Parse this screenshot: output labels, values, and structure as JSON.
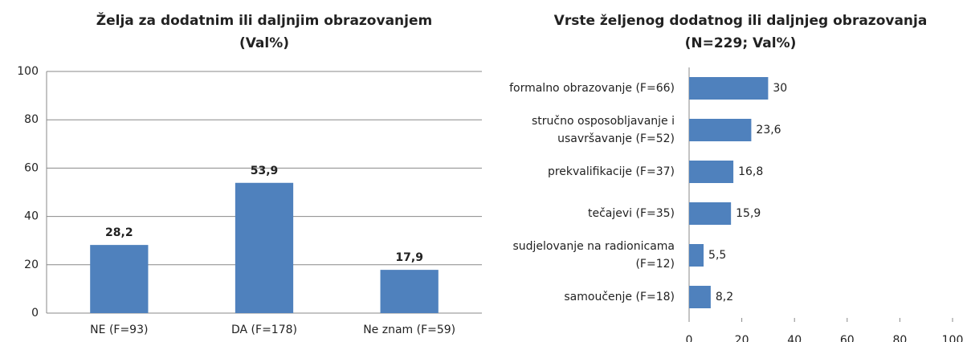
{
  "chart_data": [
    {
      "type": "bar",
      "title": [
        "Želja za dodatnim ili daljnjim obrazovanjem",
        "(Val%)"
      ],
      "categories": [
        "NE (F=93)",
        "DA (F=178)",
        "Ne znam (F=59)"
      ],
      "values": [
        28.2,
        53.9,
        17.9
      ],
      "value_labels": [
        "28,2",
        "53,9",
        "17,9"
      ],
      "color": "#4f81bd",
      "ylim": [
        0,
        100
      ],
      "yticks": [
        0,
        20,
        40,
        60,
        80,
        100
      ],
      "grid": true
    },
    {
      "type": "hbar",
      "title": [
        "Vrste željenog dodatnog ili daljnjeg obrazovanja",
        "(N=229; Val%)"
      ],
      "categories": [
        "formalno obrazovanje (F=66)",
        "stručno osposobljavanje i usavršavanje (F=52)",
        "prekvalifikacije (F=37)",
        "tečajevi (F=35)",
        "sudjelovanje na radionicama (F=12)",
        "samoučenje (F=18)"
      ],
      "values": [
        30,
        23.6,
        16.8,
        15.9,
        5.5,
        8.2
      ],
      "value_labels": [
        "30",
        "23,6",
        "16,8",
        "15,9",
        "5,5",
        "8,2"
      ],
      "color": "#4f81bd",
      "xlim": [
        0,
        100
      ],
      "xticks": [
        0,
        20,
        40,
        60,
        80,
        100
      ],
      "grid": false
    }
  ]
}
